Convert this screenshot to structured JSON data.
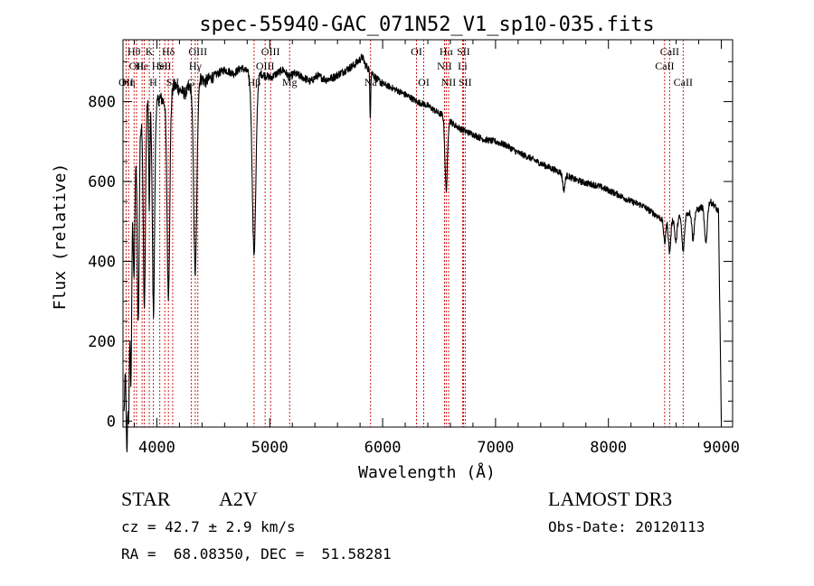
{
  "chart_data": {
    "type": "line",
    "title": "spec-55940-GAC_071N52_V1_sp10-035.fits",
    "xlabel": "Wavelength (Å)",
    "ylabel": "Flux (relative)",
    "xlim": [
      3700,
      9100
    ],
    "ylim": [
      -15,
      955
    ],
    "xticks": [
      4000,
      5000,
      6000,
      7000,
      8000,
      9000
    ],
    "yticks": [
      0,
      200,
      400,
      600,
      800
    ],
    "grid": false,
    "line_color": "#000000",
    "marker_color": "#cc0000",
    "continuum": [
      [
        3710,
        20
      ],
      [
        3730,
        250
      ],
      [
        3760,
        330
      ],
      [
        3790,
        600
      ],
      [
        3830,
        700
      ],
      [
        3870,
        760
      ],
      [
        3920,
        800
      ],
      [
        3980,
        790
      ],
      [
        4030,
        810
      ],
      [
        4060,
        800
      ],
      [
        4110,
        820
      ],
      [
        4160,
        840
      ],
      [
        4200,
        830
      ],
      [
        4250,
        820
      ],
      [
        4300,
        840
      ],
      [
        4340,
        850
      ],
      [
        4380,
        860
      ],
      [
        4430,
        850
      ],
      [
        4480,
        860
      ],
      [
        4540,
        870
      ],
      [
        4600,
        880
      ],
      [
        4680,
        870
      ],
      [
        4750,
        885
      ],
      [
        4800,
        875
      ],
      [
        4861,
        860
      ],
      [
        4920,
        870
      ],
      [
        4960,
        865
      ],
      [
        5010,
        860
      ],
      [
        5060,
        870
      ],
      [
        5120,
        880
      ],
      [
        5170,
        862
      ],
      [
        5220,
        870
      ],
      [
        5300,
        860
      ],
      [
        5360,
        850
      ],
      [
        5420,
        865
      ],
      [
        5500,
        855
      ],
      [
        5560,
        860
      ],
      [
        5620,
        870
      ],
      [
        5680,
        880
      ],
      [
        5740,
        890
      ],
      [
        5780,
        900
      ],
      [
        5820,
        912
      ],
      [
        5850,
        890
      ],
      [
        5900,
        875
      ],
      [
        5950,
        855
      ],
      [
        6000,
        845
      ],
      [
        6080,
        835
      ],
      [
        6150,
        825
      ],
      [
        6250,
        810
      ],
      [
        6300,
        800
      ],
      [
        6350,
        795
      ],
      [
        6400,
        790
      ],
      [
        6450,
        780
      ],
      [
        6500,
        770
      ],
      [
        6563,
        765
      ],
      [
        6620,
        745
      ],
      [
        6700,
        730
      ],
      [
        6800,
        718
      ],
      [
        6900,
        705
      ],
      [
        7000,
        700
      ],
      [
        7100,
        690
      ],
      [
        7200,
        672
      ],
      [
        7300,
        660
      ],
      [
        7400,
        645
      ],
      [
        7500,
        632
      ],
      [
        7600,
        620
      ],
      [
        7700,
        605
      ],
      [
        7800,
        596
      ],
      [
        7900,
        590
      ],
      [
        8000,
        578
      ],
      [
        8100,
        565
      ],
      [
        8200,
        550
      ],
      [
        8300,
        540
      ],
      [
        8400,
        520
      ],
      [
        8500,
        500
      ],
      [
        8600,
        508
      ],
      [
        8700,
        520
      ],
      [
        8800,
        530
      ],
      [
        8860,
        545
      ],
      [
        8900,
        550
      ],
      [
        8940,
        540
      ],
      [
        8970,
        525
      ]
    ],
    "absorption_lines": [
      {
        "center": 3734,
        "depth": 340,
        "width": 6
      },
      {
        "center": 3750,
        "depth": 290,
        "width": 6
      },
      {
        "center": 3771,
        "depth": 330,
        "width": 6
      },
      {
        "center": 3798,
        "depth": 260,
        "width": 7
      },
      {
        "center": 3835,
        "depth": 460,
        "width": 8
      },
      {
        "center": 3889,
        "depth": 500,
        "width": 9
      },
      {
        "center": 3933,
        "depth": 270,
        "width": 5
      },
      {
        "center": 3970,
        "depth": 520,
        "width": 10
      },
      {
        "center": 4102,
        "depth": 500,
        "width": 12
      },
      {
        "center": 4340,
        "depth": 480,
        "width": 14
      },
      {
        "center": 4861,
        "depth": 440,
        "width": 16
      },
      {
        "center": 5890,
        "depth": 110,
        "width": 4
      },
      {
        "center": 6563,
        "depth": 185,
        "width": 11
      },
      {
        "center": 7605,
        "depth": 40,
        "width": 10
      },
      {
        "center": 8498,
        "depth": 55,
        "width": 9
      },
      {
        "center": 8542,
        "depth": 80,
        "width": 10
      },
      {
        "center": 8598,
        "depth": 60,
        "width": 10
      },
      {
        "center": 8662,
        "depth": 90,
        "width": 11
      },
      {
        "center": 8750,
        "depth": 70,
        "width": 10
      },
      {
        "center": 8863,
        "depth": 100,
        "width": 12
      }
    ],
    "cutoff": {
      "start": 8975,
      "end": 9000,
      "value": 0
    },
    "line_markers": [
      {
        "wavelength": 3727,
        "label": "OII",
        "row": 3
      },
      {
        "wavelength": 3750,
        "label": "Hη",
        "row": 3
      },
      {
        "wavelength": 3798,
        "label": "Hθ",
        "row": 1
      },
      {
        "wavelength": 3820,
        "label": "OII",
        "row": 2
      },
      {
        "wavelength": 3869,
        "label": "He",
        "row": 2
      },
      {
        "wavelength": 3889,
        "label": "",
        "row": 3
      },
      {
        "wavelength": 3933,
        "label": "K",
        "row": 1
      },
      {
        "wavelength": 3968,
        "label": "H",
        "row": 3
      },
      {
        "wavelength": 4026,
        "label": "HeI",
        "row": 2
      },
      {
        "wavelength": 4070,
        "label": "SII",
        "row": 2
      },
      {
        "wavelength": 4102,
        "label": "Hδ",
        "row": 1
      },
      {
        "wavelength": 4140,
        "label": "SII",
        "row": 3
      },
      {
        "wavelength": 4304,
        "label": "G",
        "row": 3
      },
      {
        "wavelength": 4340,
        "label": "Hγ",
        "row": 2
      },
      {
        "wavelength": 4363,
        "label": "OIII",
        "row": 1
      },
      {
        "wavelength": 4861,
        "label": "Hβ",
        "row": 3
      },
      {
        "wavelength": 4959,
        "label": "OIII",
        "row": 2
      },
      {
        "wavelength": 5007,
        "label": "OIII",
        "row": 1
      },
      {
        "wavelength": 5176,
        "label": "Mg",
        "row": 3
      },
      {
        "wavelength": 5893,
        "label": "Na",
        "row": 3
      },
      {
        "wavelength": 6300,
        "label": "OI",
        "row": 1
      },
      {
        "wavelength": 6364,
        "label": "OI",
        "row": 3
      },
      {
        "wavelength": 6548,
        "label": "NII",
        "row": 2
      },
      {
        "wavelength": 6563,
        "label": "Hα",
        "row": 1
      },
      {
        "wavelength": 6584,
        "label": "NII",
        "row": 3
      },
      {
        "wavelength": 6708,
        "label": "Li",
        "row": 2
      },
      {
        "wavelength": 6716,
        "label": "SII",
        "row": 1
      },
      {
        "wavelength": 6731,
        "label": "SII",
        "row": 3
      },
      {
        "wavelength": 8498,
        "label": "CaII",
        "row": 2
      },
      {
        "wavelength": 8542,
        "label": "CaII",
        "row": 1
      },
      {
        "wavelength": 8662,
        "label": "CaII",
        "row": 3
      }
    ]
  },
  "info": {
    "object_class": "STAR",
    "subclass": "A2V",
    "survey": "LAMOST DR3",
    "redshift": "cz = 42.7 ± 2.9 km/s",
    "obs_date": "Obs-Date: 20120113",
    "coords": "RA =  68.08350, DEC =  51.58281"
  }
}
